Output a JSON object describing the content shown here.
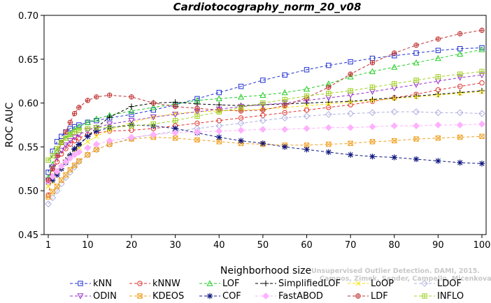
{
  "chart_data": {
    "type": "line",
    "title": "Cardiotocography_norm_20_v08",
    "xlabel": "Neighborhood size",
    "ylabel": "ROC AUC",
    "xlim": [
      1,
      100
    ],
    "ylim": [
      0.45,
      0.7
    ],
    "x_ticks": [
      1,
      10,
      20,
      30,
      40,
      50,
      60,
      70,
      80,
      90,
      100
    ],
    "y_ticks": [
      0.45,
      0.5,
      0.55,
      0.6,
      0.65,
      0.7
    ],
    "x_tick_labels": [
      "1",
      "10",
      "20",
      "30",
      "40",
      "50",
      "60",
      "70",
      "80",
      "90",
      "100"
    ],
    "y_tick_labels": [
      "0.45",
      "0.50",
      "0.55",
      "0.60",
      "0.65",
      "0.70"
    ],
    "grid": false,
    "legend_position": "bottom",
    "x": [
      1,
      2,
      3,
      4,
      5,
      6,
      7,
      8,
      10,
      12,
      15,
      20,
      25,
      30,
      35,
      40,
      45,
      50,
      55,
      60,
      65,
      70,
      75,
      80,
      85,
      90,
      95,
      100
    ],
    "series": [
      {
        "name": "kNN",
        "color": "#1f2fd0",
        "marker": "square",
        "values": [
          0.521,
          0.545,
          0.556,
          0.562,
          0.567,
          0.571,
          0.573,
          0.575,
          0.578,
          0.58,
          0.583,
          0.587,
          0.592,
          0.598,
          0.605,
          0.612,
          0.619,
          0.626,
          0.632,
          0.638,
          0.643,
          0.647,
          0.651,
          0.654,
          0.657,
          0.66,
          0.662,
          0.663
        ]
      },
      {
        "name": "kNNW",
        "color": "#e0302a",
        "marker": "circle",
        "values": [
          0.495,
          0.52,
          0.533,
          0.542,
          0.548,
          0.553,
          0.557,
          0.56,
          0.564,
          0.566,
          0.568,
          0.569,
          0.571,
          0.574,
          0.577,
          0.58,
          0.583,
          0.586,
          0.589,
          0.592,
          0.595,
          0.598,
          0.602,
          0.606,
          0.61,
          0.615,
          0.619,
          0.623
        ]
      },
      {
        "name": "LOF",
        "color": "#22cc22",
        "marker": "triangle-up",
        "values": [
          0.515,
          0.53,
          0.545,
          0.555,
          0.56,
          0.565,
          0.57,
          0.573,
          0.578,
          0.582,
          0.586,
          0.591,
          0.595,
          0.599,
          0.603,
          0.605,
          0.607,
          0.609,
          0.612,
          0.616,
          0.622,
          0.63,
          0.636,
          0.641,
          0.646,
          0.651,
          0.656,
          0.661
        ]
      },
      {
        "name": "SimplifiedLOF",
        "color": "#000000",
        "marker": "plus",
        "values": [
          0.51,
          0.515,
          0.52,
          0.528,
          0.535,
          0.541,
          0.547,
          0.552,
          0.562,
          0.572,
          0.584,
          0.596,
          0.6,
          0.601,
          0.599,
          0.598,
          0.597,
          0.598,
          0.599,
          0.6,
          0.601,
          0.602,
          0.604,
          0.606,
          0.608,
          0.61,
          0.612,
          0.614
        ]
      },
      {
        "name": "LoOP",
        "color": "#f5e000",
        "marker": "x",
        "values": [
          0.505,
          0.51,
          0.518,
          0.526,
          0.533,
          0.539,
          0.544,
          0.549,
          0.556,
          0.562,
          0.569,
          0.578,
          0.584,
          0.588,
          0.59,
          0.591,
          0.592,
          0.593,
          0.595,
          0.597,
          0.599,
          0.601,
          0.603,
          0.605,
          0.607,
          0.609,
          0.611,
          0.613
        ]
      },
      {
        "name": "LDOF",
        "color": "#b0b0e0",
        "marker": "diamond",
        "values": [
          0.485,
          0.492,
          0.5,
          0.508,
          0.515,
          0.521,
          0.527,
          0.533,
          0.541,
          0.547,
          0.553,
          0.56,
          0.564,
          0.568,
          0.571,
          0.574,
          0.577,
          0.58,
          0.583,
          0.585,
          0.587,
          0.588,
          0.589,
          0.59,
          0.59,
          0.589,
          0.589,
          0.588
        ]
      },
      {
        "name": "ODIN",
        "color": "#9932cc",
        "marker": "triangle-down",
        "values": [
          0.512,
          0.527,
          0.538,
          0.546,
          0.552,
          0.557,
          0.561,
          0.564,
          0.569,
          0.572,
          0.576,
          0.58,
          0.584,
          0.587,
          0.59,
          0.593,
          0.596,
          0.598,
          0.6,
          0.603,
          0.606,
          0.609,
          0.613,
          0.617,
          0.621,
          0.625,
          0.629,
          0.632
        ]
      },
      {
        "name": "KDEOS",
        "color": "#f0a020",
        "marker": "square-x",
        "values": [
          0.493,
          0.499,
          0.505,
          0.512,
          0.518,
          0.524,
          0.529,
          0.534,
          0.541,
          0.547,
          0.553,
          0.559,
          0.561,
          0.56,
          0.558,
          0.556,
          0.554,
          0.553,
          0.552,
          0.552,
          0.553,
          0.554,
          0.556,
          0.557,
          0.559,
          0.56,
          0.561,
          0.562
        ]
      },
      {
        "name": "COF",
        "color": "#101880",
        "marker": "asterisk",
        "values": [
          0.51,
          0.512,
          0.518,
          0.525,
          0.532,
          0.54,
          0.548,
          0.553,
          0.562,
          0.568,
          0.572,
          0.575,
          0.574,
          0.571,
          0.566,
          0.561,
          0.557,
          0.554,
          0.55,
          0.547,
          0.544,
          0.541,
          0.539,
          0.538,
          0.536,
          0.534,
          0.532,
          0.531
        ]
      },
      {
        "name": "FastABOD",
        "color": "#ffb0ff",
        "marker": "diamond-fill",
        "values": [
          0.51,
          0.516,
          0.522,
          0.528,
          0.533,
          0.537,
          0.541,
          0.544,
          0.549,
          0.553,
          0.557,
          0.561,
          0.564,
          0.566,
          0.567,
          0.568,
          0.569,
          0.57,
          0.57,
          0.571,
          0.572,
          0.572,
          0.573,
          0.574,
          0.574,
          0.575,
          0.575,
          0.576
        ]
      },
      {
        "name": "LDF",
        "color": "#c03030",
        "marker": "circle-plus",
        "values": [
          0.512,
          0.525,
          0.54,
          0.555,
          0.567,
          0.578,
          0.588,
          0.595,
          0.603,
          0.607,
          0.609,
          0.607,
          0.6,
          0.596,
          0.594,
          0.592,
          0.591,
          0.592,
          0.597,
          0.606,
          0.618,
          0.633,
          0.646,
          0.657,
          0.666,
          0.673,
          0.679,
          0.683
        ]
      },
      {
        "name": "INFLO",
        "color": "#a0d020",
        "marker": "square-cross",
        "values": [
          0.535,
          0.54,
          0.548,
          0.555,
          0.56,
          0.564,
          0.567,
          0.569,
          0.571,
          0.572,
          0.572,
          0.574,
          0.576,
          0.58,
          0.585,
          0.59,
          0.595,
          0.6,
          0.604,
          0.608,
          0.611,
          0.614,
          0.618,
          0.622,
          0.626,
          0.63,
          0.633,
          0.636
        ]
      }
    ],
    "legend_order": [
      "kNN",
      "kNNW",
      "LOF",
      "SimplifiedLOF",
      "LoOP",
      "LDOF",
      "ODIN",
      "KDEOS",
      "COF",
      "FastABOD",
      "LDF",
      "INFLO"
    ]
  },
  "credit": {
    "line1": "Unsupervised Outlier Detection. DAMI, 2015.",
    "line2": "Campos, Zimek, Sander, Campello, Micenkova, Schubert, Assent, Houle"
  }
}
